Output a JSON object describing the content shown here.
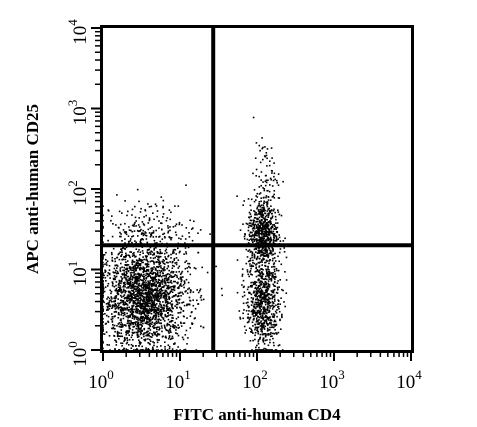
{
  "chart_data": {
    "type": "scatter",
    "title": "",
    "xlabel": "FITC anti-human CD4",
    "ylabel": "APC anti-human CD25",
    "x_scale": "log",
    "y_scale": "log",
    "xlim": [
      1,
      10000
    ],
    "ylim": [
      1,
      10000
    ],
    "x_ticks": [
      {
        "base": "10",
        "exp": "0",
        "value": 1
      },
      {
        "base": "10",
        "exp": "1",
        "value": 10
      },
      {
        "base": "10",
        "exp": "2",
        "value": 100
      },
      {
        "base": "10",
        "exp": "3",
        "value": 1000
      },
      {
        "base": "10",
        "exp": "4",
        "value": 10000
      }
    ],
    "y_ticks": [
      {
        "base": "10",
        "exp": "0",
        "value": 1
      },
      {
        "base": "10",
        "exp": "1",
        "value": 10
      },
      {
        "base": "10",
        "exp": "2",
        "value": 100
      },
      {
        "base": "10",
        "exp": "3",
        "value": 1000
      },
      {
        "base": "10",
        "exp": "4",
        "value": 10000
      }
    ],
    "quadrant_gates": {
      "x": 27,
      "y": 20
    },
    "grid": false,
    "point_color": "#000000",
    "populations": [
      {
        "x_center": 3.5,
        "y_center": 4.5,
        "x_spread_log": 0.28,
        "y_spread_log": 0.32,
        "count": 2200
      },
      {
        "x_center": 120,
        "y_center": 4.0,
        "x_spread_log": 0.11,
        "y_spread_log": 0.3,
        "count": 750
      },
      {
        "x_center": 120,
        "y_center": 28,
        "x_spread_log": 0.1,
        "y_spread_log": 0.22,
        "count": 650
      },
      {
        "x_center": 4.0,
        "y_center": 28,
        "x_spread_log": 0.3,
        "y_spread_log": 0.22,
        "count": 220
      },
      {
        "x_center": 130,
        "y_center": 150,
        "x_spread_log": 0.08,
        "y_spread_log": 0.2,
        "count": 70
      }
    ]
  }
}
